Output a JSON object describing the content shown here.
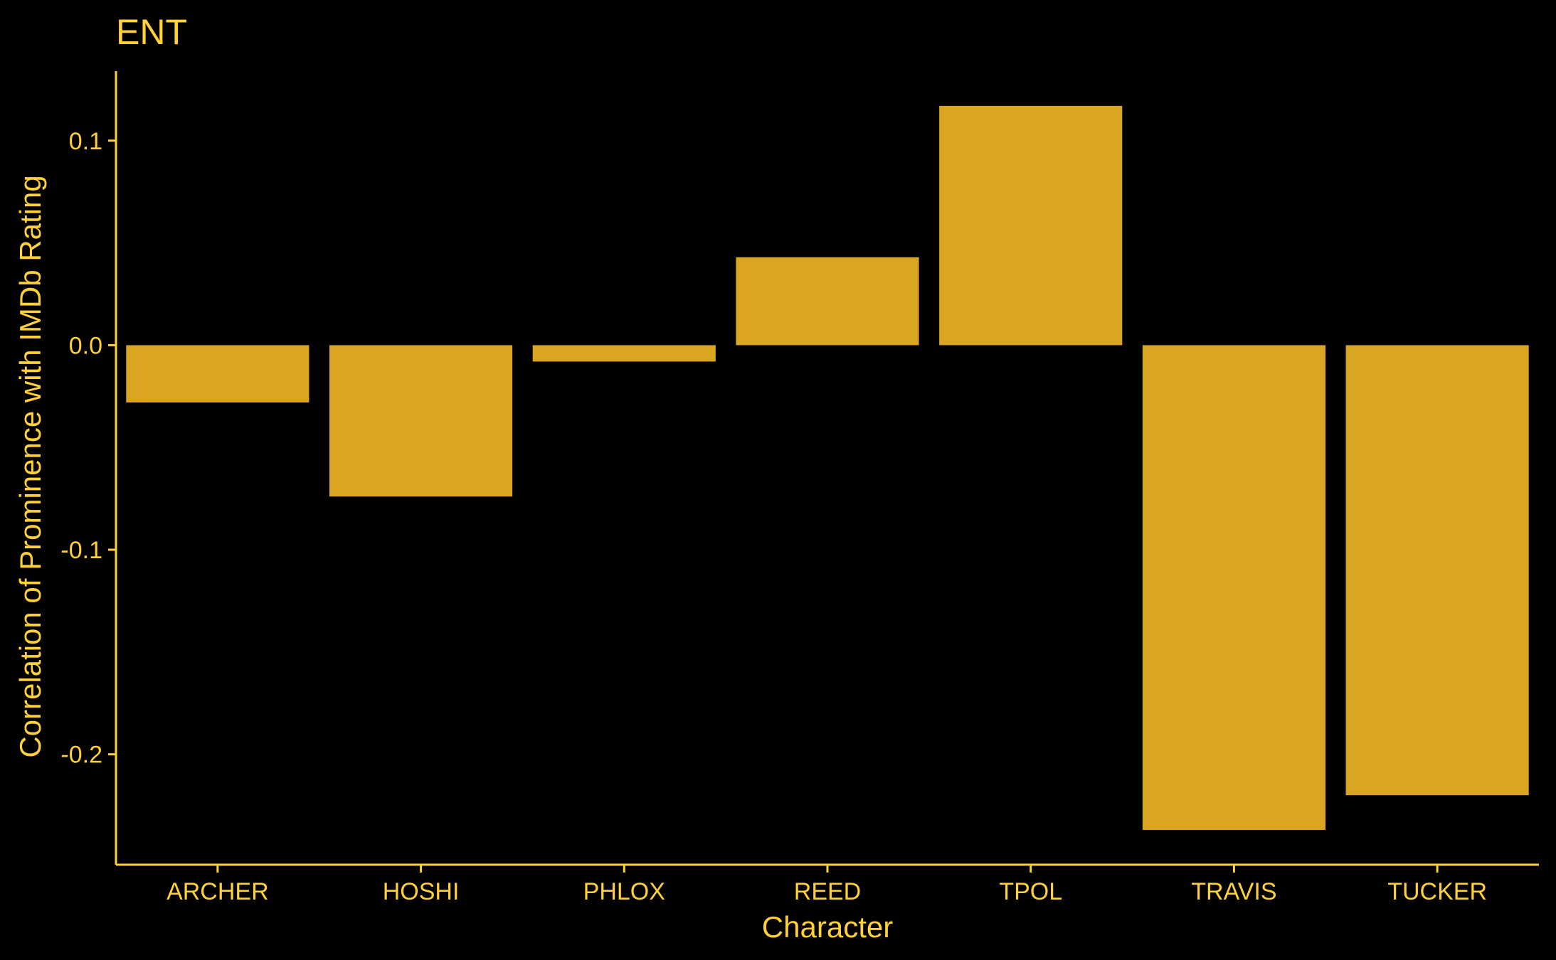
{
  "chart_data": {
    "type": "bar",
    "title": "ENT",
    "xlabel": "Character",
    "ylabel": "Correlation of Prominence with IMDb Rating",
    "categories": [
      "ARCHER",
      "HOSHI",
      "PHLOX",
      "REED",
      "TPOL",
      "TRAVIS",
      "TUCKER"
    ],
    "values": [
      -0.028,
      -0.074,
      -0.008,
      0.043,
      0.117,
      -0.237,
      -0.22
    ],
    "ylim": [
      -0.254,
      0.134
    ],
    "yticks": [
      0.1,
      0.0,
      -0.1,
      -0.2
    ],
    "ytick_labels": [
      "0.1",
      "0.0",
      "-0.1",
      "-0.2"
    ],
    "grid": false,
    "legend": "none",
    "colors": {
      "background": "#000000",
      "bar": "#DAA520",
      "text": "#FFD139",
      "axis": "#FFD139"
    }
  }
}
